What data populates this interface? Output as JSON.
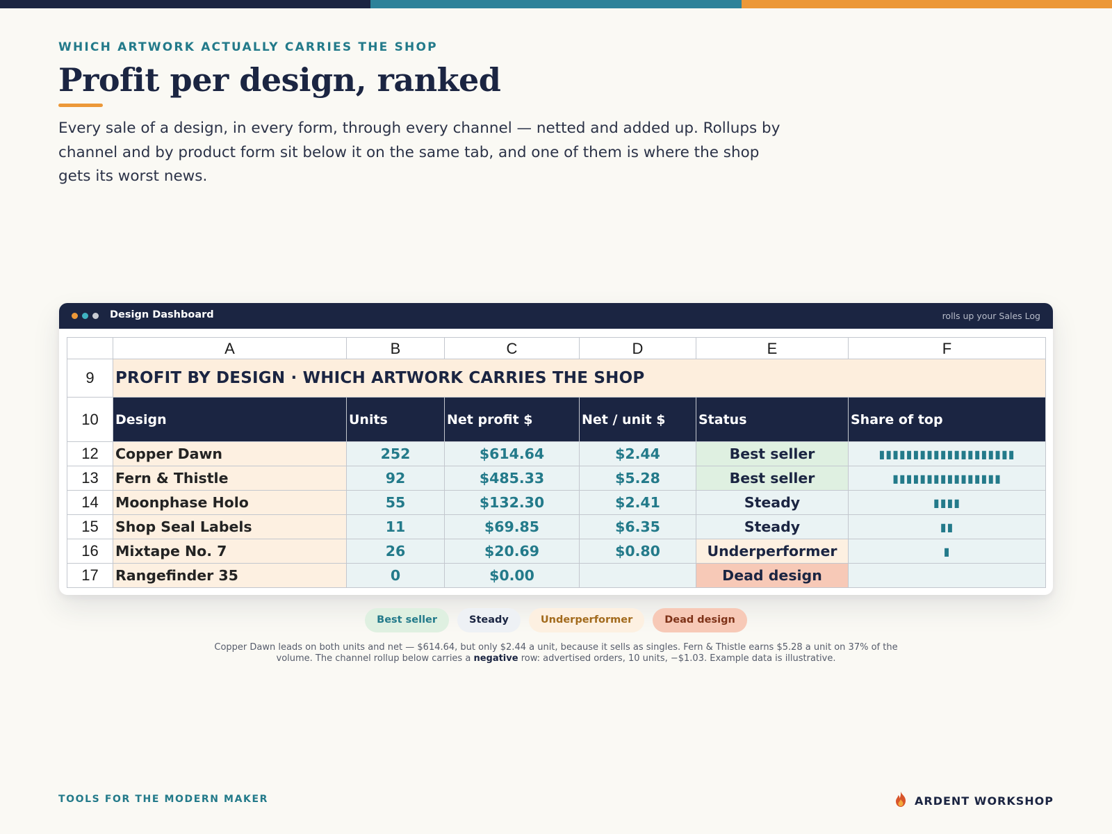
{
  "eyebrow": "WHICH ARTWORK ACTUALLY CARRIES THE SHOP",
  "title": "Profit per design, ranked",
  "intro": "Every sale of a design, in every form, through every channel — netted and added up. Rollups by channel and by product form sit below it on the same tab, and one of them is where the shop gets its worst news.",
  "colors": {
    "navy": "#1b2542",
    "teal": "#237a8a",
    "orange": "#ec9838",
    "best": "#dff0e1",
    "under": "#fdf0e1",
    "dead": "#f7c9b7"
  },
  "window": {
    "title": "Design Dashboard",
    "note": "rolls up your Sales Log"
  },
  "sheet": {
    "columns": [
      "A",
      "B",
      "C",
      "D",
      "E",
      "F"
    ],
    "banner": {
      "row": "9",
      "text": "PROFIT BY DESIGN  ·  WHICH ARTWORK CARRIES THE SHOP"
    },
    "header": {
      "row": "10",
      "cells": [
        "Design",
        "Units",
        "Net profit $",
        "Net / unit $",
        "Status",
        "Share of top"
      ]
    },
    "rows": [
      {
        "row": "12",
        "design": "Copper Dawn",
        "units": "252",
        "net": "$614.64",
        "per_unit": "$2.44",
        "status": "Best seller",
        "share_bar": "▮▮▮▮▮▮▮▮▮▮▮▮▮▮▮▮▮▮▮▮",
        "share_pct": 100
      },
      {
        "row": "13",
        "design": "Fern & Thistle",
        "units": "92",
        "net": "$485.33",
        "per_unit": "$5.28",
        "status": "Best seller",
        "share_bar": "▮▮▮▮▮▮▮▮▮▮▮▮▮▮▮▮",
        "share_pct": 79
      },
      {
        "row": "14",
        "design": "Moonphase Holo",
        "units": "55",
        "net": "$132.30",
        "per_unit": "$2.41",
        "status": "Steady",
        "share_bar": "▮▮▮▮",
        "share_pct": 22
      },
      {
        "row": "15",
        "design": "Shop Seal Labels",
        "units": "11",
        "net": "$69.85",
        "per_unit": "$6.35",
        "status": "Steady",
        "share_bar": "▮▮",
        "share_pct": 11
      },
      {
        "row": "16",
        "design": "Mixtape No. 7",
        "units": "26",
        "net": "$20.69",
        "per_unit": "$0.80",
        "status": "Underperformer",
        "share_bar": "▮",
        "share_pct": 3
      },
      {
        "row": "17",
        "design": "Rangefinder 35",
        "units": "0",
        "net": "$0.00",
        "per_unit": "",
        "status": "Dead design",
        "share_bar": "",
        "share_pct": 0
      }
    ]
  },
  "legend": [
    "Best seller",
    "Steady",
    "Underperformer",
    "Dead design"
  ],
  "caption": {
    "before": "Copper Dawn leads on both units and net — $614.64, but only $2.44 a unit, because it sells as singles. Fern & Thistle earns $5.28 a unit on 37% of the volume. The channel rollup below carries a ",
    "bold": "negative",
    "after": " row: advertised orders, 10 units, −$1.03. Example data is illustrative."
  },
  "footer": {
    "left": "TOOLS FOR THE MODERN MAKER",
    "brand": "ARDENT WORKSHOP",
    "brand_icon": "flame-icon"
  }
}
